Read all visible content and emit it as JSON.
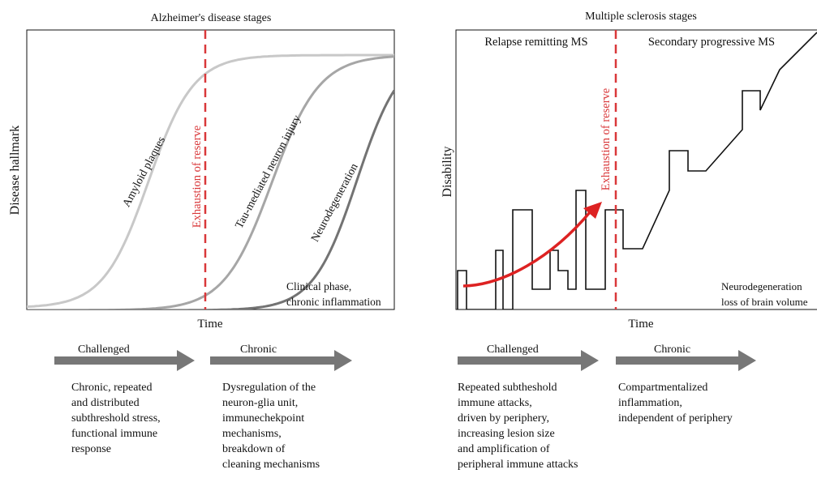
{
  "alzheimer": {
    "title": "Alzheimer's disease stages",
    "ylabel": "Disease hallmark",
    "xlabel": "Time",
    "reserve_label": "Exhaustion of  reserve",
    "curve_labels": {
      "amyloid": "Amyloid plaques",
      "tau": "Tau-mediated neuron injury",
      "neuro": "Neurodegeneration"
    },
    "clinical_note": [
      "Clinical phase,",
      "chronic inflammation"
    ],
    "phases": [
      {
        "title": "Challenged",
        "lines": [
          "Chronic, repeated",
          "and distributed",
          "subthreshold stress,",
          "functional immune",
          "response"
        ]
      },
      {
        "title": "Chronic",
        "lines": [
          "Dysregulation of the",
          "neuron-glia unit,",
          "immunechekpoint",
          "mechanisms,",
          "breakdown of",
          "cleaning mechanisms"
        ]
      }
    ]
  },
  "ms": {
    "title": "Multiple sclerosis stages",
    "ylabel": "Disability",
    "xlabel": "Time",
    "reserve_label": "Exhaustion of  reserve",
    "rrms_label": "Relapse remitting MS",
    "spms_label": "Secondary progressive MS",
    "neuro_note": [
      "Neurodegeneration",
      "loss of brain volume"
    ],
    "phases": [
      {
        "title": "Challenged",
        "lines": [
          "Repeated subtheshold",
          "immune attacks,",
          "driven by periphery,",
          "increasing lesion size",
          "and amplification of",
          "peripheral immune attacks"
        ]
      },
      {
        "title": "Chronic",
        "lines": [
          "Compartmentalized",
          "inflammation,",
          "independent of periphery"
        ]
      }
    ]
  },
  "colors": {
    "reserve": "#d9383a",
    "arrow": "#dd2222",
    "amyloid": "#c8c8c8",
    "tau": "#a6a6a6",
    "neuro": "#737373",
    "phase_arrow": "#777777"
  }
}
